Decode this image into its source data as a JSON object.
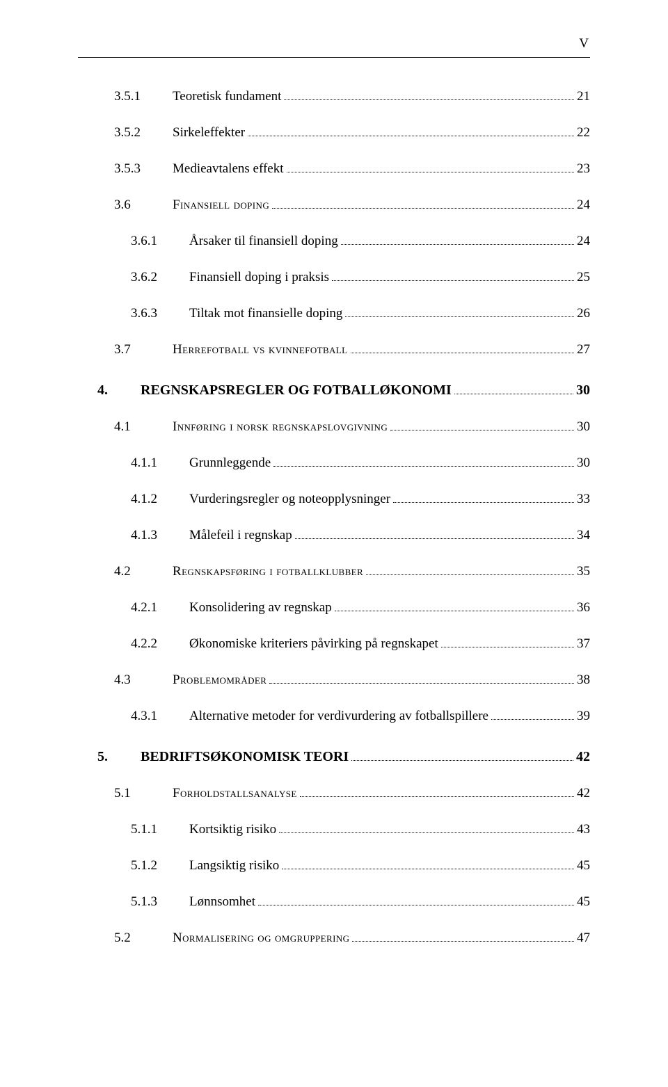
{
  "page_number_roman": "V",
  "toc": [
    {
      "level": "l2",
      "num": "3.5.1",
      "label": "Teoretisk fundament",
      "page": "21"
    },
    {
      "level": "l2",
      "num": "3.5.2",
      "label": "Sirkeleffekter",
      "page": "22"
    },
    {
      "level": "l2",
      "num": "3.5.3",
      "label": "Medieavtalens effekt",
      "page": "23"
    },
    {
      "level": "l2",
      "num": "3.6",
      "label": "Finansiell doping",
      "page": "24",
      "smallcaps": true
    },
    {
      "level": "l3",
      "num": "3.6.1",
      "label": "Årsaker til finansiell doping",
      "page": "24"
    },
    {
      "level": "l3",
      "num": "3.6.2",
      "label": "Finansiell doping i praksis",
      "page": "25"
    },
    {
      "level": "l3",
      "num": "3.6.3",
      "label": "Tiltak mot finansielle doping",
      "page": "26"
    },
    {
      "level": "l2",
      "num": "3.7",
      "label": "Herrefotball vs kvinnefotball",
      "page": "27",
      "smallcaps": true
    },
    {
      "level": "l1",
      "num": "4.",
      "label": "REGNSKAPSREGLER OG FOTBALLØKONOMI",
      "page": "30",
      "bold": true
    },
    {
      "level": "l2",
      "num": "4.1",
      "label": "Innføring i norsk regnskapslovgivning",
      "page": "30",
      "smallcaps": true
    },
    {
      "level": "l3",
      "num": "4.1.1",
      "label": "Grunnleggende",
      "page": "30"
    },
    {
      "level": "l3",
      "num": "4.1.2",
      "label": "Vurderingsregler og noteopplysninger",
      "page": "33"
    },
    {
      "level": "l3",
      "num": "4.1.3",
      "label": "Målefeil i regnskap",
      "page": "34"
    },
    {
      "level": "l2",
      "num": "4.2",
      "label": "Regnskapsføring i fotballklubber",
      "page": "35",
      "smallcaps": true
    },
    {
      "level": "l3",
      "num": "4.2.1",
      "label": "Konsolidering av regnskap",
      "page": "36"
    },
    {
      "level": "l3",
      "num": "4.2.2",
      "label": "Økonomiske kriteriers påvirking på regnskapet",
      "page": "37"
    },
    {
      "level": "l2",
      "num": "4.3",
      "label": "Problemområder",
      "page": "38",
      "smallcaps": true
    },
    {
      "level": "l3",
      "num": "4.3.1",
      "label": "Alternative metoder for verdivurdering av fotballspillere",
      "page": "39"
    },
    {
      "level": "l1",
      "num": "5.",
      "label": "BEDRIFTSØKONOMISK TEORI",
      "page": "42",
      "bold": true
    },
    {
      "level": "l2",
      "num": "5.1",
      "label": "Forholdstallsanalyse",
      "page": "42",
      "smallcaps": true
    },
    {
      "level": "l3",
      "num": "5.1.1",
      "label": "Kortsiktig risiko",
      "page": "43"
    },
    {
      "level": "l3",
      "num": "5.1.2",
      "label": "Langsiktig risiko",
      "page": "45"
    },
    {
      "level": "l3",
      "num": "5.1.3",
      "label": "Lønnsomhet",
      "page": "45"
    },
    {
      "level": "l2",
      "num": "5.2",
      "label": "Normalisering og omgruppering",
      "page": "47",
      "smallcaps": true
    }
  ]
}
